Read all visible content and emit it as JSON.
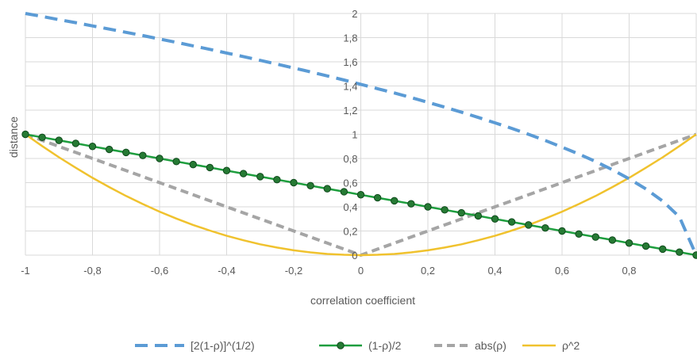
{
  "chart_data": {
    "type": "line",
    "xlabel": "correlation coefficient",
    "ylabel": "distance",
    "xlim": [
      -1,
      1
    ],
    "ylim": [
      0,
      2
    ],
    "x_ticks": [
      "-1",
      "-0,8",
      "-0,6",
      "-0,4",
      "-0,2",
      "0",
      "0,2",
      "0,4",
      "0,6",
      "0,8"
    ],
    "y_ticks": [
      "0",
      "0,2",
      "0,4",
      "0,6",
      "0,8",
      "1",
      "1,2",
      "1,4",
      "1,6",
      "1,8",
      "2"
    ],
    "grid": true,
    "legend_position": "bottom",
    "x": [
      -1,
      -0.95,
      -0.9,
      -0.85,
      -0.8,
      -0.75,
      -0.7,
      -0.65,
      -0.6,
      -0.55,
      -0.5,
      -0.45,
      -0.4,
      -0.35,
      -0.3,
      -0.25,
      -0.2,
      -0.15,
      -0.1,
      -0.05,
      0,
      0.05,
      0.1,
      0.15,
      0.2,
      0.25,
      0.3,
      0.35,
      0.4,
      0.45,
      0.5,
      0.55,
      0.6,
      0.65,
      0.7,
      0.75,
      0.8,
      0.85,
      0.9,
      0.95,
      1
    ],
    "series": [
      {
        "name": "[2(1-ρ)]^(1/2)",
        "color": "#5b9bd5",
        "style": "dash",
        "values": [
          2,
          1.975,
          1.949,
          1.924,
          1.897,
          1.871,
          1.844,
          1.817,
          1.789,
          1.761,
          1.732,
          1.703,
          1.673,
          1.643,
          1.612,
          1.581,
          1.549,
          1.517,
          1.483,
          1.449,
          1.414,
          1.378,
          1.342,
          1.304,
          1.265,
          1.225,
          1.183,
          1.14,
          1.095,
          1.049,
          1,
          0.949,
          0.894,
          0.837,
          0.775,
          0.707,
          0.632,
          0.548,
          0.447,
          0.316,
          0
        ]
      },
      {
        "name": "(1-ρ)/2",
        "color": "#1e9e3e",
        "style": "solid-markers",
        "values": [
          1,
          0.975,
          0.95,
          0.925,
          0.9,
          0.875,
          0.85,
          0.825,
          0.8,
          0.775,
          0.75,
          0.725,
          0.7,
          0.675,
          0.65,
          0.625,
          0.6,
          0.575,
          0.55,
          0.525,
          0.5,
          0.475,
          0.45,
          0.425,
          0.4,
          0.375,
          0.35,
          0.325,
          0.3,
          0.275,
          0.25,
          0.225,
          0.2,
          0.175,
          0.15,
          0.125,
          0.1,
          0.075,
          0.05,
          0.025,
          0
        ]
      },
      {
        "name": "abs(ρ)",
        "color": "#a5a5a5",
        "style": "dash",
        "values": [
          1,
          0.95,
          0.9,
          0.85,
          0.8,
          0.75,
          0.7,
          0.65,
          0.6,
          0.55,
          0.5,
          0.45,
          0.4,
          0.35,
          0.3,
          0.25,
          0.2,
          0.15,
          0.1,
          0.05,
          0,
          0.05,
          0.1,
          0.15,
          0.2,
          0.25,
          0.3,
          0.35,
          0.4,
          0.45,
          0.5,
          0.55,
          0.6,
          0.65,
          0.7,
          0.75,
          0.8,
          0.85,
          0.9,
          0.95,
          1
        ]
      },
      {
        "name": "ρ^2",
        "color": "#f0c22e",
        "style": "solid",
        "values": [
          1,
          0.903,
          0.81,
          0.723,
          0.64,
          0.563,
          0.49,
          0.423,
          0.36,
          0.303,
          0.25,
          0.203,
          0.16,
          0.123,
          0.09,
          0.063,
          0.04,
          0.023,
          0.01,
          0.003,
          0,
          0.003,
          0.01,
          0.023,
          0.04,
          0.063,
          0.09,
          0.123,
          0.16,
          0.203,
          0.25,
          0.303,
          0.36,
          0.423,
          0.49,
          0.563,
          0.64,
          0.723,
          0.81,
          0.903,
          1
        ]
      }
    ]
  }
}
